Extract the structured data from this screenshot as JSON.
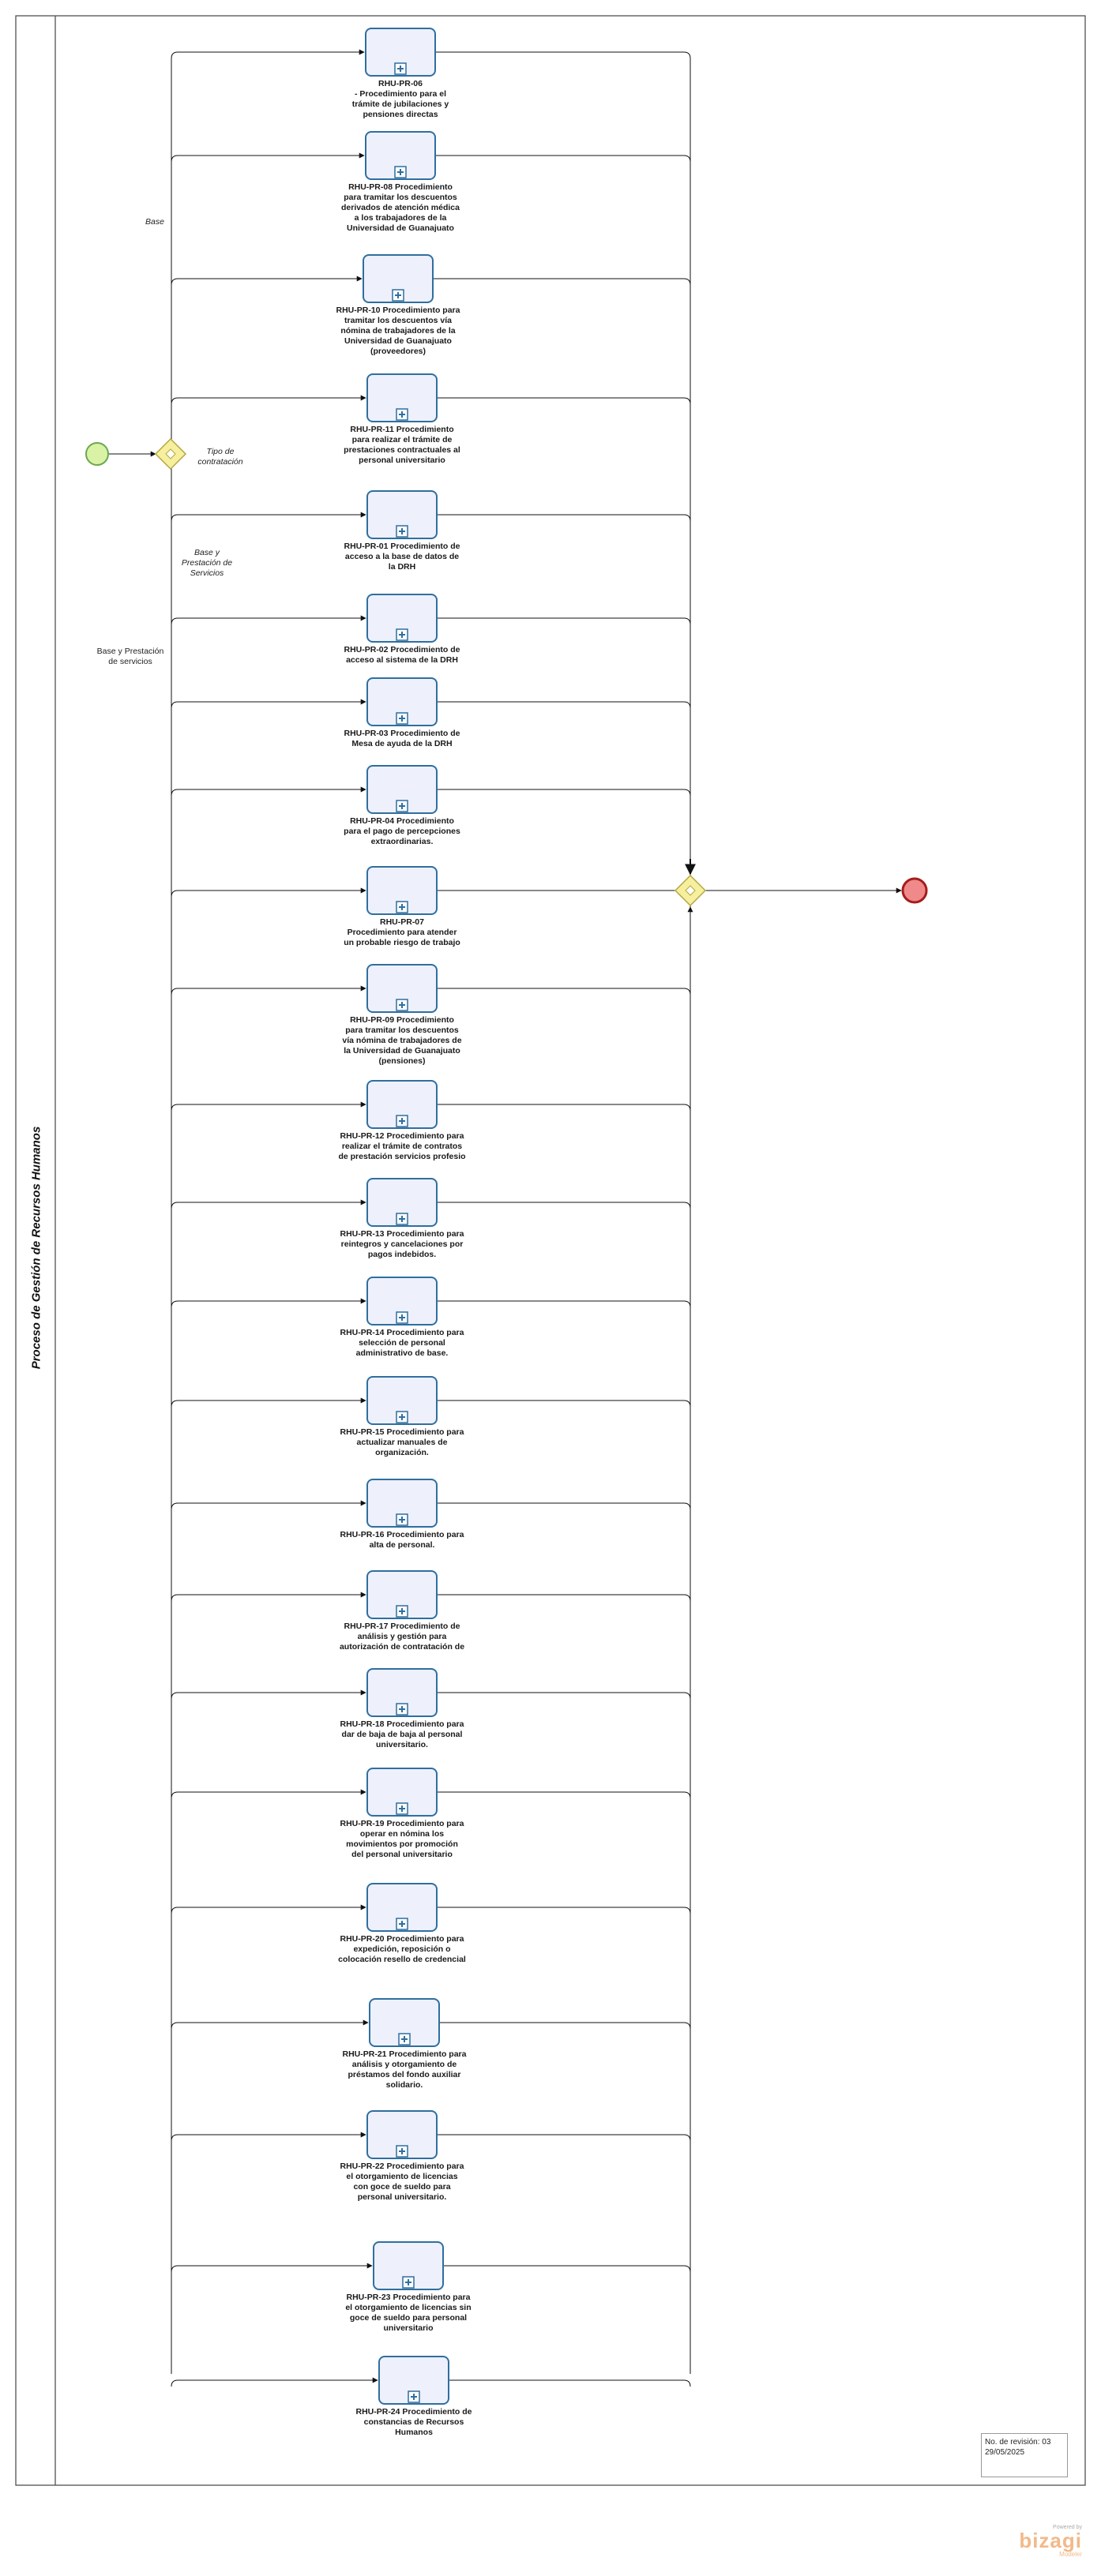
{
  "pool_title": "Proceso de Gestión de Recursos Humanos",
  "gateway_label": "Tipo de contratación",
  "branch_labels": [
    "Base",
    "Base y Prestación de Servicios",
    "Base y Prestación de servicios"
  ],
  "revision": {
    "line1": "No. de revisión: 03",
    "line2": "29/05/2025"
  },
  "branding": {
    "powered": "Powered by",
    "name": "bizagi",
    "sub": "Modeler"
  },
  "colors": {
    "task_fill": "#eef0fb",
    "task_stroke": "#2f6f9f",
    "start_fill": "#d9f2a6",
    "end_fill": "#f08a8a",
    "gateway_fill": "#f5ef9e"
  },
  "tasks": [
    {
      "label": "RHU-PR-06\n-      Procedimiento para el\ntrámite de jubilaciones y\npensiones directas"
    },
    {
      "label": "RHU-PR-08 Procedimiento\npara tramitar los descuentos\nderivados de atención médica\na los trabajadores de la\nUniversidad de Guanajuato"
    },
    {
      "label": "RHU-PR-10 Procedimiento para\ntramitar los descuentos vía\nnómina de trabajadores de la\nUniversidad de Guanajuato\n(proveedores)"
    },
    {
      "label": "RHU-PR-11 Procedimiento\npara realizar el trámite de\nprestaciones contractuales al\npersonal universitario"
    },
    {
      "label": "RHU-PR-01 Procedimiento de\nacceso a la base de datos de\nla DRH"
    },
    {
      "label": "RHU-PR-02 Procedimiento de\nacceso al sistema de la DRH"
    },
    {
      "label": "RHU-PR-03 Procedimiento de\nMesa de ayuda de la DRH"
    },
    {
      "label": "RHU-PR-04 Procedimiento\npara el pago de percepciones\nextraordinarias."
    },
    {
      "label": "RHU-PR-07\nProcedimiento para atender\nun probable riesgo de trabajo"
    },
    {
      "label": "RHU-PR-09          Procedimiento\npara  tramitar los descuentos\nvía nómina de trabajadores de\nla Universidad de Guanajuato\n(pensiones)"
    },
    {
      "label": "RHU-PR-12 Procedimiento para\nrealizar el trámite de contratos\nde prestación servicios profesio"
    },
    {
      "label": "RHU-PR-13 Procedimiento para\nreintegros y cancelaciones por\npagos indebidos."
    },
    {
      "label": "RHU-PR-14 Procedimiento para\nselección de personal\nadministrativo de base."
    },
    {
      "label": "RHU-PR-15 Procedimiento para\nactualizar manuales de\norganización."
    },
    {
      "label": "RHU-PR-16 Procedimiento para\nalta de personal."
    },
    {
      "label": "RHU-PR-17 Procedimiento de\nanálisis y gestión para\nautorización de contratación de"
    },
    {
      "label": "RHU-PR-18 Procedimiento para\ndar de baja de baja al personal\nuniversitario."
    },
    {
      "label": "RHU-PR-19 Procedimiento para\noperar en nómina los\nmovimientos por promoción\ndel personal universitario"
    },
    {
      "label": "RHU-PR-20 Procedimiento para\nexpedición, reposición o\ncolocación resello de credencial"
    },
    {
      "label": "RHU-PR-21 Procedimiento para\nanálisis y otorgamiento de\npréstamos del fondo auxiliar\nsolidario."
    },
    {
      "label": "RHU-PR-22 Procedimiento para\nel otorgamiento de licencias\ncon goce de sueldo para\npersonal universitario."
    },
    {
      "label": "RHU-PR-23 Procedimiento para\nel otorgamiento de licencias sin\ngoce de sueldo para personal\nuniversitario"
    },
    {
      "label": "RHU-PR-24 Procedimiento de\nconstancias de Recursos\nHumanos"
    }
  ]
}
